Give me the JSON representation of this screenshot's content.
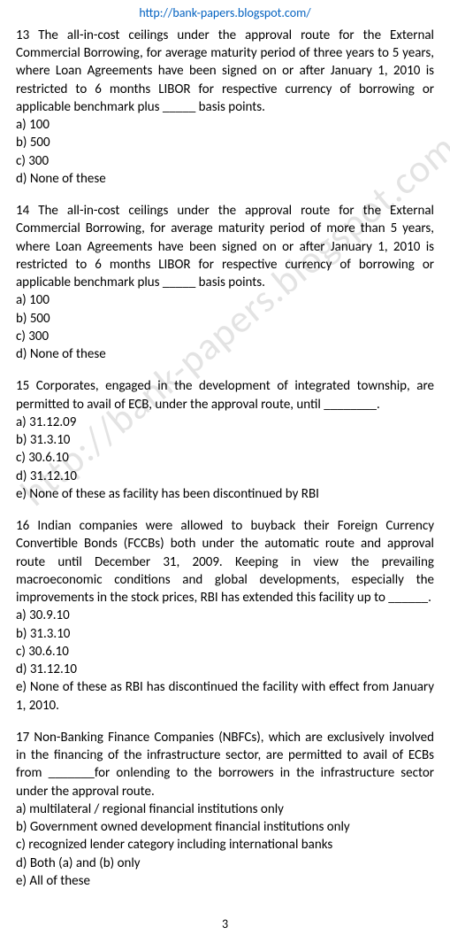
{
  "header": {
    "url": "http://bank-papers.blogspot.com/"
  },
  "watermark": "http://bank-papers.blogspot.com/",
  "questions": [
    {
      "text": "13 The all-in-cost ceilings under the approval route for the External Commercial Borrowing, for average maturity period of three years to 5 years, where Loan Agreements have been signed on or after January 1, 2010 is restricted to 6 months LIBOR for respective currency of borrowing or applicable benchmark plus _____ basis points.",
      "options": [
        "a) 100",
        "b) 500",
        "c) 300",
        "d) None of these"
      ]
    },
    {
      "text": "14 The all-in-cost ceilings under the approval route for the External Commercial Borrowing, for average maturity period of more than 5 years, where Loan Agreements have been signed on or after January 1, 2010 is restricted to 6 months LIBOR for respective currency of borrowing or applicable benchmark plus _____ basis points.",
      "options": [
        "a) 100",
        "b) 500",
        "c) 300",
        "d) None of these"
      ]
    },
    {
      "text": "15 Corporates, engaged in the development of integrated township, are permitted to avail of ECB, under the approval route, until ________.",
      "options": [
        "a) 31.12.09",
        "b) 31.3.10",
        "c) 30.6.10",
        "d) 31.12.10",
        "e) None of these as facility has been discontinued by RBI"
      ]
    },
    {
      "text": "16 Indian companies were allowed to buyback their Foreign Currency Convertible Bonds (FCCBs) both under the automatic route and approval route until December 31, 2009. Keeping in view the prevailing macroeconomic conditions and global developments, especially the improvements in the stock prices, RBI has extended this facility up to ______.",
      "options": [
        "a) 30.9.10",
        "b) 31.3.10",
        "c) 30.6.10",
        "d) 31.12.10",
        "e) None of these as RBI has discontinued the facility with effect from January 1, 2010."
      ]
    },
    {
      "text": "17 Non-Banking Finance Companies (NBFCs), which are exclusively involved in the financing of the infrastructure sector, are permitted to avail of ECBs from _______for onlending to the borrowers in the infrastructure sector under the approval route.",
      "options": [
        "a) multilateral / regional financial institutions only",
        "b) Government owned development financial institutions only",
        "c) recognized lender category including international banks",
        "d) Both (a) and (b) only",
        "e) All of these"
      ]
    }
  ],
  "pageNumber": "3"
}
